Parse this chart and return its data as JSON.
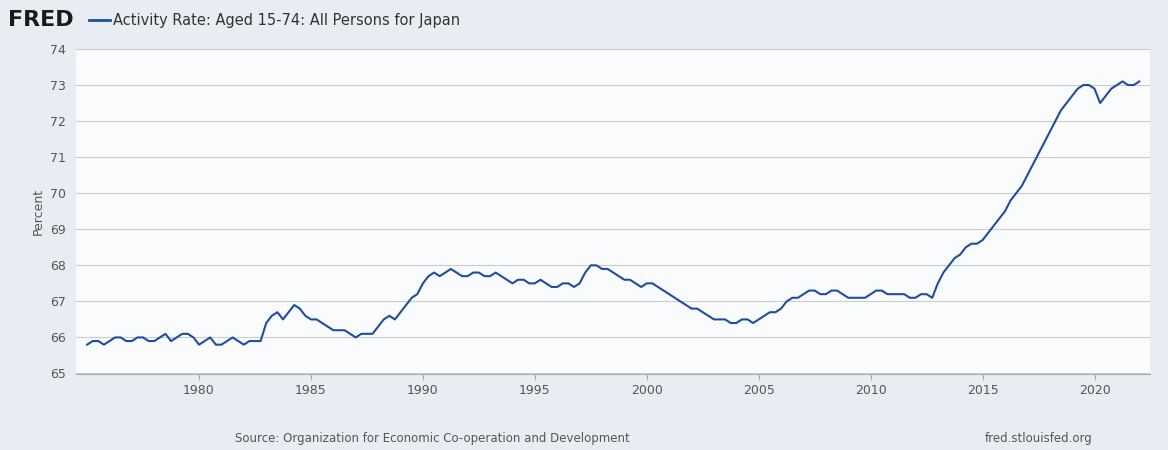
{
  "title": "Activity Rate: Aged 15-74: All Persons for Japan",
  "ylabel": "Percent",
  "source_left": "Source: Organization for Economic Co-operation and Development",
  "source_right": "fred.stlouisfed.org",
  "bg_color": "#e8edf4",
  "plot_bg_color": "#f9fbfd",
  "line_color": "#1f4e9e",
  "line_width": 1.5,
  "ylim": [
    65,
    74
  ],
  "yticks": [
    65,
    66,
    67,
    68,
    69,
    70,
    71,
    72,
    73,
    74
  ],
  "xtick_years": [
    1980,
    1985,
    1990,
    1995,
    2000,
    2005,
    2010,
    2015,
    2020
  ],
  "data": {
    "1975-Q1": 65.8,
    "1975-Q2": 65.9,
    "1975-Q3": 65.9,
    "1975-Q4": 65.8,
    "1976-Q1": 65.9,
    "1976-Q2": 66.0,
    "1976-Q3": 66.0,
    "1976-Q4": 65.9,
    "1977-Q1": 65.9,
    "1977-Q2": 66.0,
    "1977-Q3": 66.0,
    "1977-Q4": 65.9,
    "1978-Q1": 65.9,
    "1978-Q2": 66.0,
    "1978-Q3": 66.1,
    "1978-Q4": 65.9,
    "1979-Q1": 66.0,
    "1979-Q2": 66.1,
    "1979-Q3": 66.1,
    "1979-Q4": 66.0,
    "1980-Q1": 65.8,
    "1980-Q2": 65.9,
    "1980-Q3": 66.0,
    "1980-Q4": 65.8,
    "1981-Q1": 65.8,
    "1981-Q2": 65.9,
    "1981-Q3": 66.0,
    "1981-Q4": 65.9,
    "1982-Q1": 65.8,
    "1982-Q2": 65.9,
    "1982-Q3": 65.9,
    "1982-Q4": 65.9,
    "1983-Q1": 66.4,
    "1983-Q2": 66.6,
    "1983-Q3": 66.7,
    "1983-Q4": 66.5,
    "1984-Q1": 66.7,
    "1984-Q2": 66.9,
    "1984-Q3": 66.8,
    "1984-Q4": 66.6,
    "1985-Q1": 66.5,
    "1985-Q2": 66.5,
    "1985-Q3": 66.4,
    "1985-Q4": 66.3,
    "1986-Q1": 66.2,
    "1986-Q2": 66.2,
    "1986-Q3": 66.2,
    "1986-Q4": 66.1,
    "1987-Q1": 66.0,
    "1987-Q2": 66.1,
    "1987-Q3": 66.1,
    "1987-Q4": 66.1,
    "1988-Q1": 66.3,
    "1988-Q2": 66.5,
    "1988-Q3": 66.6,
    "1988-Q4": 66.5,
    "1989-Q1": 66.7,
    "1989-Q2": 66.9,
    "1989-Q3": 67.1,
    "1989-Q4": 67.2,
    "1990-Q1": 67.5,
    "1990-Q2": 67.7,
    "1990-Q3": 67.8,
    "1990-Q4": 67.7,
    "1991-Q1": 67.8,
    "1991-Q2": 67.9,
    "1991-Q3": 67.8,
    "1991-Q4": 67.7,
    "1992-Q1": 67.7,
    "1992-Q2": 67.8,
    "1992-Q3": 67.8,
    "1992-Q4": 67.7,
    "1993-Q1": 67.7,
    "1993-Q2": 67.8,
    "1993-Q3": 67.7,
    "1993-Q4": 67.6,
    "1994-Q1": 67.5,
    "1994-Q2": 67.6,
    "1994-Q3": 67.6,
    "1994-Q4": 67.5,
    "1995-Q1": 67.5,
    "1995-Q2": 67.6,
    "1995-Q3": 67.5,
    "1995-Q4": 67.4,
    "1996-Q1": 67.4,
    "1996-Q2": 67.5,
    "1996-Q3": 67.5,
    "1996-Q4": 67.4,
    "1997-Q1": 67.5,
    "1997-Q2": 67.8,
    "1997-Q3": 68.0,
    "1997-Q4": 68.0,
    "1998-Q1": 67.9,
    "1998-Q2": 67.9,
    "1998-Q3": 67.8,
    "1998-Q4": 67.7,
    "1999-Q1": 67.6,
    "1999-Q2": 67.6,
    "1999-Q3": 67.5,
    "1999-Q4": 67.4,
    "2000-Q1": 67.5,
    "2000-Q2": 67.5,
    "2000-Q3": 67.4,
    "2000-Q4": 67.3,
    "2001-Q1": 67.2,
    "2001-Q2": 67.1,
    "2001-Q3": 67.0,
    "2001-Q4": 66.9,
    "2002-Q1": 66.8,
    "2002-Q2": 66.8,
    "2002-Q3": 66.7,
    "2002-Q4": 66.6,
    "2003-Q1": 66.5,
    "2003-Q2": 66.5,
    "2003-Q3": 66.5,
    "2003-Q4": 66.4,
    "2004-Q1": 66.4,
    "2004-Q2": 66.5,
    "2004-Q3": 66.5,
    "2004-Q4": 66.4,
    "2005-Q1": 66.5,
    "2005-Q2": 66.6,
    "2005-Q3": 66.7,
    "2005-Q4": 66.7,
    "2006-Q1": 66.8,
    "2006-Q2": 67.0,
    "2006-Q3": 67.1,
    "2006-Q4": 67.1,
    "2007-Q1": 67.2,
    "2007-Q2": 67.3,
    "2007-Q3": 67.3,
    "2007-Q4": 67.2,
    "2008-Q1": 67.2,
    "2008-Q2": 67.3,
    "2008-Q3": 67.3,
    "2008-Q4": 67.2,
    "2009-Q1": 67.1,
    "2009-Q2": 67.1,
    "2009-Q3": 67.1,
    "2009-Q4": 67.1,
    "2010-Q1": 67.2,
    "2010-Q2": 67.3,
    "2010-Q3": 67.3,
    "2010-Q4": 67.2,
    "2011-Q1": 67.2,
    "2011-Q2": 67.2,
    "2011-Q3": 67.2,
    "2011-Q4": 67.1,
    "2012-Q1": 67.1,
    "2012-Q2": 67.2,
    "2012-Q3": 67.2,
    "2012-Q4": 67.1,
    "2013-Q1": 67.5,
    "2013-Q2": 67.8,
    "2013-Q3": 68.0,
    "2013-Q4": 68.2,
    "2014-Q1": 68.3,
    "2014-Q2": 68.5,
    "2014-Q3": 68.6,
    "2014-Q4": 68.6,
    "2015-Q1": 68.7,
    "2015-Q2": 68.9,
    "2015-Q3": 69.1,
    "2015-Q4": 69.3,
    "2016-Q1": 69.5,
    "2016-Q2": 69.8,
    "2016-Q3": 70.0,
    "2016-Q4": 70.2,
    "2017-Q1": 70.5,
    "2017-Q2": 70.8,
    "2017-Q3": 71.1,
    "2017-Q4": 71.4,
    "2018-Q1": 71.7,
    "2018-Q2": 72.0,
    "2018-Q3": 72.3,
    "2018-Q4": 72.5,
    "2019-Q1": 72.7,
    "2019-Q2": 72.9,
    "2019-Q3": 73.0,
    "2019-Q4": 73.0,
    "2020-Q1": 72.9,
    "2020-Q2": 72.5,
    "2020-Q3": 72.7,
    "2020-Q4": 72.9,
    "2021-Q1": 73.0,
    "2021-Q2": 73.1,
    "2021-Q3": 73.0,
    "2021-Q4": 73.0,
    "2022-Q1": 73.1
  }
}
